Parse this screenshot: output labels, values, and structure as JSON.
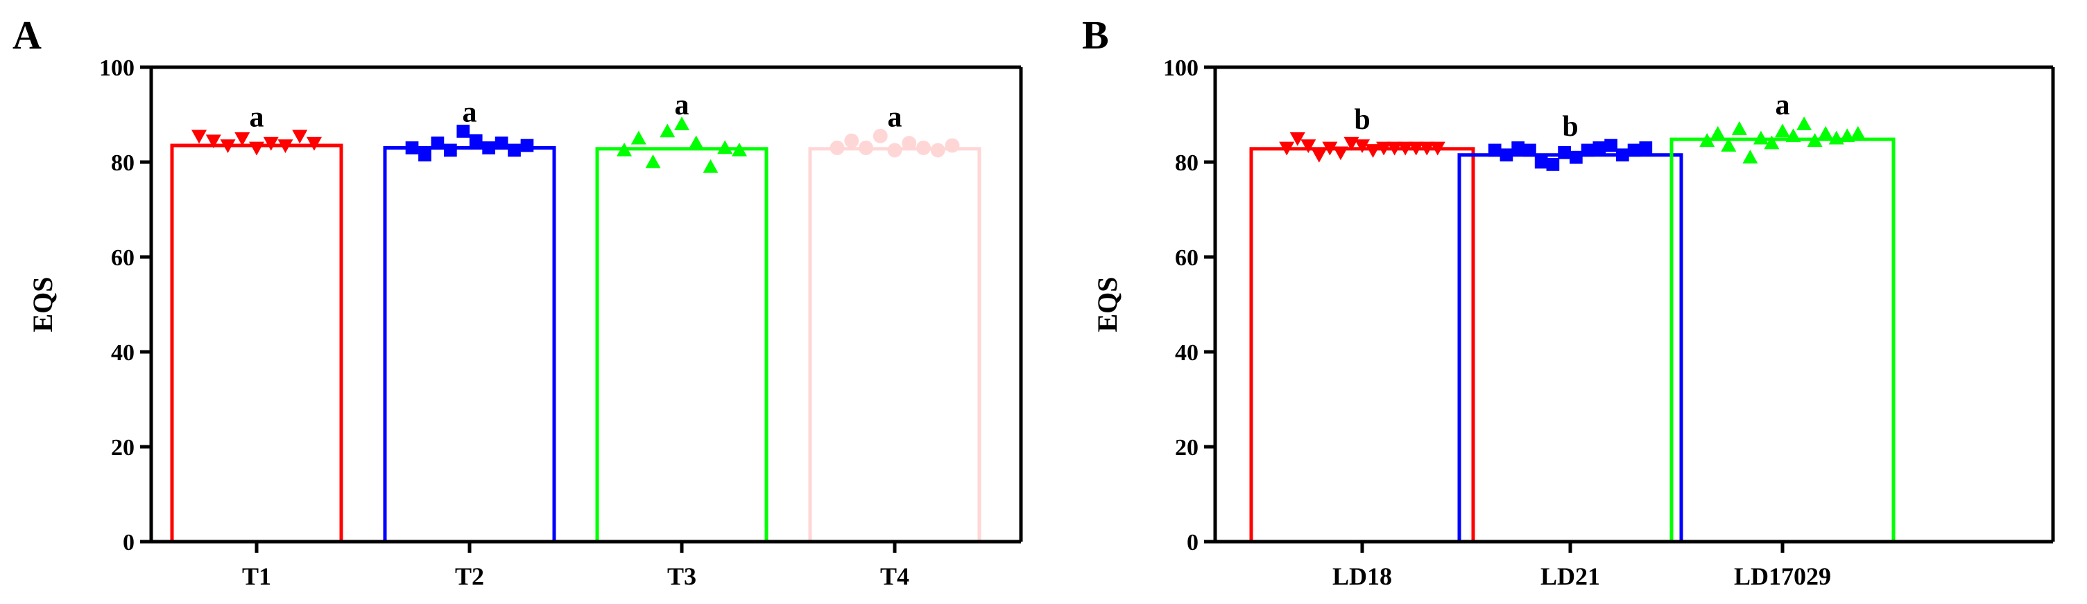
{
  "chart_data": [
    {
      "panel": "A",
      "type": "bar",
      "ylabel": "EQS",
      "xlabel": "",
      "ylim": [
        0,
        100
      ],
      "yticks": [
        0,
        20,
        40,
        60,
        80,
        100
      ],
      "categories": [
        "T1",
        "T2",
        "T3",
        "T4"
      ],
      "values": [
        83.5,
        83.0,
        82.8,
        82.8
      ],
      "significance": [
        "a",
        "a",
        "a",
        "a"
      ],
      "colors": [
        "#ff0000",
        "#0000ff",
        "#00ff00",
        "#ffd6d6"
      ],
      "markers": [
        "triangle-down",
        "square",
        "triangle-up",
        "circle"
      ],
      "points": [
        [
          85.5,
          84.5,
          83.5,
          85.0,
          83.0,
          84.0,
          83.5,
          85.5,
          84.0
        ],
        [
          83.0,
          81.5,
          84.0,
          82.5,
          86.5,
          84.5,
          83.0,
          84.0,
          82.5,
          83.5
        ],
        [
          82.5,
          85.0,
          80.0,
          86.5,
          88.0,
          84.0,
          79.0,
          83.0,
          82.5
        ],
        [
          83.0,
          84.5,
          83.0,
          85.5,
          82.5,
          84.0,
          83.0,
          82.5,
          83.5
        ]
      ]
    },
    {
      "panel": "B",
      "type": "bar",
      "ylabel": "EQS",
      "xlabel": "",
      "ylim": [
        0,
        100
      ],
      "yticks": [
        0,
        20,
        40,
        60,
        80,
        100
      ],
      "categories": [
        "LD18",
        "LD21",
        "LD17029"
      ],
      "values": [
        82.8,
        81.5,
        84.8
      ],
      "significance": [
        "b",
        "b",
        "a"
      ],
      "colors": [
        "#ff0000",
        "#0000ff",
        "#00ff00"
      ],
      "markers": [
        "triangle-down",
        "square",
        "triangle-up"
      ],
      "points": [
        [
          83.0,
          85.0,
          83.5,
          81.5,
          83.0,
          82.0,
          84.0,
          83.5,
          82.5,
          83.0,
          83.0,
          83.0,
          83.0,
          83.0,
          83.0
        ],
        [
          82.5,
          81.5,
          83.0,
          82.5,
          80.0,
          79.5,
          82.0,
          81.0,
          82.5,
          83.0,
          83.5,
          81.5,
          82.5,
          83.0
        ],
        [
          84.5,
          86.0,
          83.5,
          87.0,
          81.0,
          85.0,
          84.0,
          86.5,
          85.5,
          88.0,
          84.5,
          86.0,
          85.0,
          85.5,
          86.0
        ]
      ]
    }
  ],
  "panels": {
    "a": {
      "letter": "A"
    },
    "b": {
      "letter": "B"
    }
  }
}
